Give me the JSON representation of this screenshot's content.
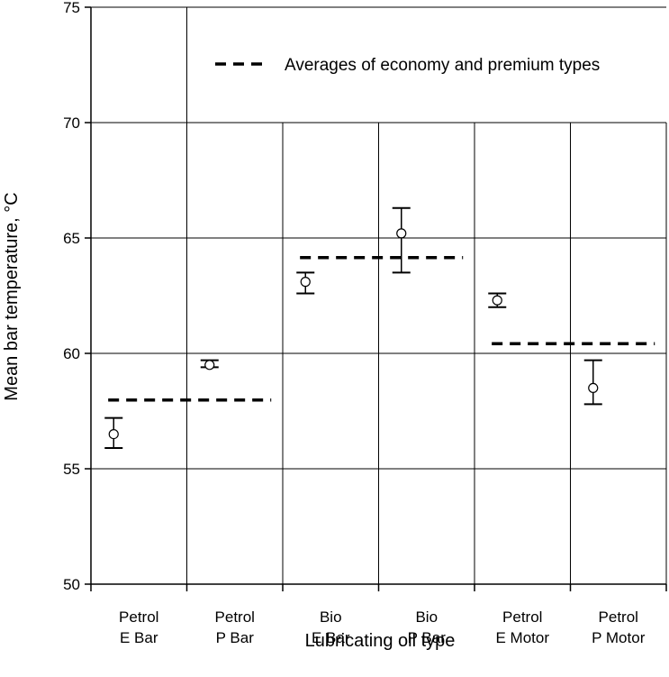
{
  "chart_data": {
    "type": "scatter",
    "title": "",
    "xlabel": "Lubricating oil type",
    "ylabel": "Mean bar temperature, °C",
    "ylim": [
      50,
      75
    ],
    "yticks": [
      50,
      55,
      60,
      65,
      70,
      75
    ],
    "grid": true,
    "categories": [
      [
        "Petrol",
        "E Bar"
      ],
      [
        "Petrol",
        "P Bar"
      ],
      [
        "Bio",
        "E Bar"
      ],
      [
        "Bio",
        "P Bar"
      ],
      [
        "Petrol",
        "E Motor"
      ],
      [
        "Petrol",
        "P Motor"
      ]
    ],
    "series": [
      {
        "kind": "mean-with-error-bars",
        "values": [
          56.5,
          59.5,
          63.1,
          65.2,
          62.3,
          58.5
        ],
        "lower": [
          55.9,
          59.4,
          62.6,
          63.5,
          62.0,
          57.8
        ],
        "upper": [
          57.2,
          59.7,
          63.5,
          66.3,
          62.6,
          59.7
        ]
      }
    ],
    "averages": {
      "name": "Averages of economy and premium types",
      "values": [
        57.98,
        64.15,
        60.42
      ],
      "spans": [
        [
          0,
          1
        ],
        [
          2,
          3
        ],
        [
          4,
          5
        ]
      ]
    },
    "legend": {
      "position": "top-right",
      "label": "Averages of economy and premium types"
    }
  }
}
